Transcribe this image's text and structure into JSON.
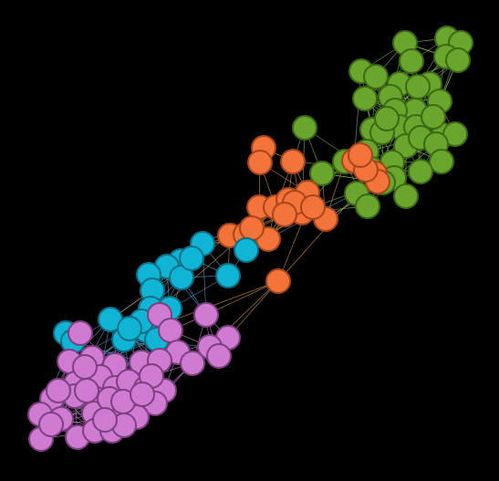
{
  "diagram": {
    "type": "network-graph",
    "background": "#000000",
    "groups": [
      {
        "id": "green",
        "fill": "#6aa52e",
        "stroke": "#3b6a12",
        "edge": "#8fbf5a"
      },
      {
        "id": "orange",
        "fill": "#f2743a",
        "stroke": "#a8451a",
        "edge": "#e8a050"
      },
      {
        "id": "cyan",
        "fill": "#10b4d4",
        "stroke": "#0b6f86",
        "edge": "#5aa8d8"
      },
      {
        "id": "magenta",
        "fill": "#d07bd2",
        "stroke": "#7e3f82",
        "edge": "#c98fd0"
      }
    ],
    "node_counts": {
      "green": 40,
      "orange": 22,
      "cyan": 19,
      "magenta": 45
    }
  }
}
